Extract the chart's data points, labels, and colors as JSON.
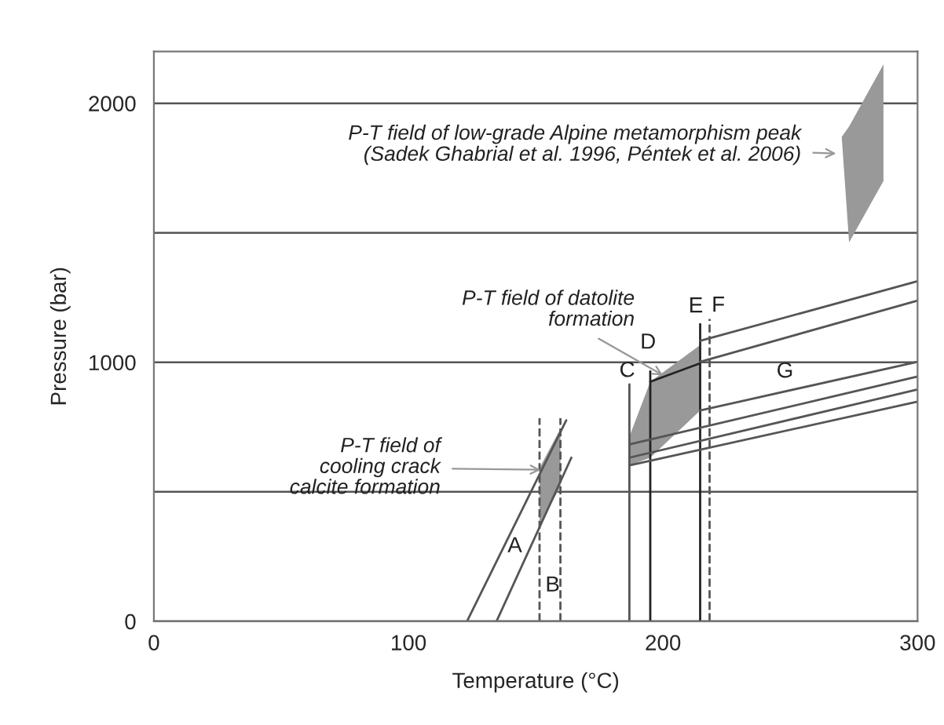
{
  "chart_data": {
    "type": "line",
    "xlabel": "Temperature (°C)",
    "ylabel": "Pressure (bar)",
    "xlim": [
      0,
      300
    ],
    "ylim": [
      0,
      2200
    ],
    "xticks": [
      0,
      100,
      200,
      300
    ],
    "yticks": [
      0,
      {
        "value": 500,
        "label": null
      },
      1000,
      {
        "value": 1500,
        "label": null
      },
      2000
    ],
    "grid": "y",
    "legend": false,
    "series": [
      {
        "type": "line",
        "color": "#999999",
        "x": [
          151.5,
          159.7
        ],
        "values": [
          null,
          null
        ],
        "lower": [
          370,
          521
        ],
        "upper": [
          592,
          743
        ]
      },
      {
        "type": "line",
        "color": "#999999",
        "x": [
          186.8,
          195,
          214.6
        ],
        "values": [
          null,
          null,
          null
        ],
        "lower": [
          602,
          632,
          814
        ],
        "upper": [
          713,
          925,
          1067
        ]
      },
      {
        "type": "line",
        "color": "#999999",
        "x": [
          270.2,
          273.1,
          286.6
        ],
        "values": [
          null,
          null,
          null
        ],
        "lower": [
          1870,
          1463,
          1700
        ],
        "upper": [
          1870,
          1910,
          2150
        ]
      },
      {
        "type": "line",
        "name": "A",
        "color": "#555555",
        "x": [
          123,
          162
        ],
        "values": [
          0,
          776
        ]
      },
      {
        "type": "line",
        "color": "#555555",
        "x": [
          134.6,
          164
        ],
        "values": [
          0,
          632
        ]
      },
      {
        "type": "line",
        "name": "B",
        "color": "#555555",
        "line_style": "dashed",
        "x": [
          151.5,
          151.5
        ],
        "values": [
          0,
          784
        ]
      },
      {
        "type": "line",
        "color": "#555555",
        "line_style": "dashed",
        "x": [
          159.7,
          159.7
        ],
        "values": [
          0,
          784
        ]
      },
      {
        "type": "line",
        "name": "C",
        "color": "#555555",
        "x": [
          186.8,
          186.8
        ],
        "values": [
          0,
          915
        ]
      },
      {
        "type": "line",
        "name": "D",
        "color": "#222222",
        "x": [
          195,
          195
        ],
        "values": [
          0,
          965
        ]
      },
      {
        "type": "line",
        "name": "E",
        "color": "#222222",
        "x": [
          214.6,
          214.6
        ],
        "values": [
          0,
          1147
        ]
      },
      {
        "type": "line",
        "name": "F",
        "color": "#555555",
        "line_style": "dashed",
        "x": [
          218.3,
          218.3
        ],
        "values": [
          0,
          1167
        ]
      },
      {
        "type": "line",
        "color": "#222222",
        "x": [
          195,
          214.6
        ],
        "values": [
          925,
          996
        ]
      },
      {
        "type": "line",
        "color": "#555555",
        "x": [
          214.6,
          300
        ],
        "values": [
          1083,
          1313
        ]
      },
      {
        "type": "line",
        "color": "#555555",
        "x": [
          214.6,
          300
        ],
        "values": [
          1002,
          1238
        ]
      },
      {
        "type": "line",
        "name": "G",
        "color": "#555555",
        "x": [
          214.6,
          300
        ],
        "values": [
          814,
          1002
        ]
      },
      {
        "type": "line",
        "color": "#555555",
        "x": [
          186.8,
          300
        ],
        "values": [
          683,
          945
        ]
      },
      {
        "type": "line",
        "color": "#555555",
        "x": [
          186.8,
          300
        ],
        "values": [
          632,
          895
        ]
      },
      {
        "type": "line",
        "color": "#555555",
        "x": [
          186.8,
          300
        ],
        "values": [
          602,
          848
        ]
      }
    ],
    "annotations": [
      {
        "text": "P-T field of\ncooling crack\ncalcite formation",
        "x": 152,
        "y": 585
      },
      {
        "text": "P-T field of datolite\nformation",
        "x": 200,
        "y": 950
      },
      {
        "text": "P-T field of low-grade Alpine metamorphism peak\n(Sadek Ghabrial et al. 1996, Péntek et al. 2006)",
        "x": 268,
        "y": 1806
      }
    ]
  }
}
